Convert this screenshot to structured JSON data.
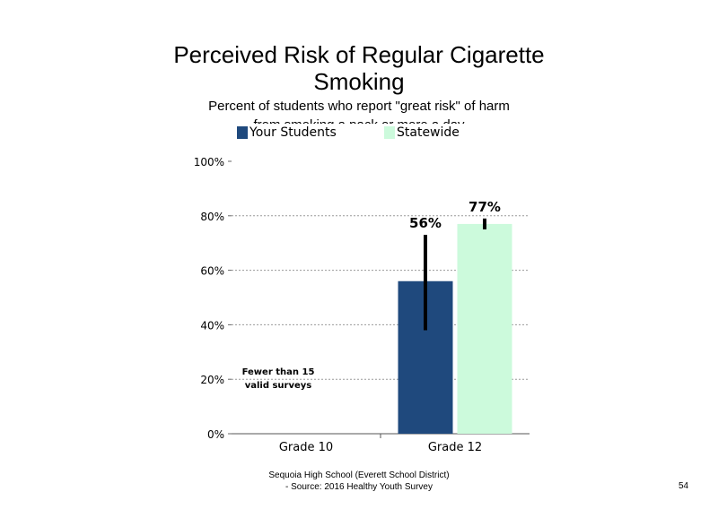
{
  "title_line1": "Perceived Risk of Regular Cigarette",
  "title_line2": "Smoking",
  "subtitle_line1": "Percent of students who report \"great risk\" of harm",
  "subtitle_line2": "from smoking a pack or more a day",
  "footer_line1": "Sequoia High School (Everett School District)",
  "footer_line2": "- Source: 2016 Healthy Youth Survey",
  "page_number": "54",
  "chart_data": {
    "type": "bar",
    "categories": [
      "Grade 10",
      "Grade 12"
    ],
    "ylim": [
      0,
      100
    ],
    "yticks": [
      0,
      20,
      40,
      60,
      80,
      100
    ],
    "ytick_labels": [
      "0%",
      "20%",
      "40%",
      "60%",
      "80%",
      "100%"
    ],
    "grid": true,
    "legend_position": "top",
    "series": [
      {
        "name": "Your Students",
        "color": "#1f497d",
        "values": [
          null,
          56
        ],
        "labels": [
          "",
          "56%"
        ],
        "error_low": [
          null,
          38
        ],
        "error_high": [
          null,
          73
        ]
      },
      {
        "name": "Statewide",
        "color": "#ccfadc",
        "values": [
          null,
          77
        ],
        "labels": [
          "",
          "77%"
        ],
        "error_low": [
          null,
          75
        ],
        "error_high": [
          null,
          79
        ]
      }
    ],
    "annotations": [
      "Fewer than 15",
      "valid surveys"
    ]
  }
}
